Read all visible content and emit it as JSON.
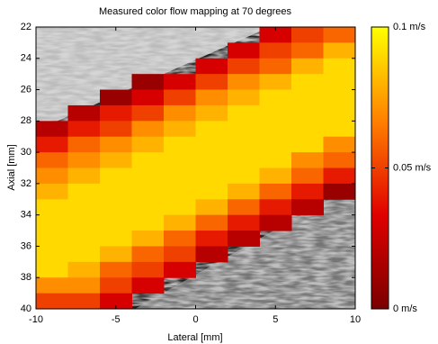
{
  "chart_data": {
    "type": "heatmap",
    "title": "Measured color flow mapping at 70 degrees",
    "xlabel": "Lateral [mm]",
    "ylabel": "Axial [mm]",
    "x": [
      -9,
      -7,
      -5,
      -3,
      -1,
      1,
      3,
      5,
      7,
      9
    ],
    "y": [
      22.5,
      23.5,
      24.5,
      25.5,
      26.5,
      27.5,
      28.5,
      29.5,
      30.5,
      31.5,
      32.5,
      33.5,
      34.5,
      35.5,
      36.5,
      37.5,
      38.5,
      39.5
    ],
    "values": [
      [
        null,
        null,
        null,
        null,
        null,
        null,
        null,
        0.03,
        0.05,
        0.06
      ],
      [
        null,
        null,
        null,
        null,
        null,
        null,
        0.03,
        0.05,
        0.06,
        0.08
      ],
      [
        null,
        null,
        null,
        null,
        null,
        0.03,
        0.05,
        0.06,
        0.08,
        0.09
      ],
      [
        null,
        null,
        null,
        0.01,
        0.03,
        0.05,
        0.07,
        0.08,
        0.09,
        0.09
      ],
      [
        null,
        null,
        0.01,
        0.03,
        0.05,
        0.07,
        0.08,
        0.09,
        0.09,
        0.09
      ],
      [
        null,
        0.02,
        0.04,
        0.05,
        0.07,
        0.08,
        0.09,
        0.09,
        0.09,
        0.09
      ],
      [
        0.02,
        0.04,
        0.05,
        0.07,
        0.08,
        0.09,
        0.09,
        0.09,
        0.09,
        0.09
      ],
      [
        0.04,
        0.06,
        0.07,
        0.08,
        0.09,
        0.09,
        0.09,
        0.09,
        0.09,
        0.07
      ],
      [
        0.06,
        0.07,
        0.08,
        0.09,
        0.09,
        0.09,
        0.09,
        0.09,
        0.07,
        0.06
      ],
      [
        0.07,
        0.08,
        0.09,
        0.09,
        0.09,
        0.09,
        0.09,
        0.08,
        0.06,
        0.04
      ],
      [
        0.08,
        0.09,
        0.09,
        0.09,
        0.09,
        0.09,
        0.08,
        0.06,
        0.04,
        0.01
      ],
      [
        0.09,
        0.09,
        0.09,
        0.09,
        0.09,
        0.08,
        0.06,
        0.04,
        0.02,
        null
      ],
      [
        0.09,
        0.09,
        0.09,
        0.09,
        0.08,
        0.06,
        0.04,
        0.02,
        null,
        null
      ],
      [
        0.09,
        0.09,
        0.09,
        0.08,
        0.06,
        0.04,
        0.02,
        null,
        null,
        null
      ],
      [
        0.09,
        0.09,
        0.08,
        0.06,
        0.05,
        0.02,
        null,
        null,
        null,
        null
      ],
      [
        0.09,
        0.08,
        0.06,
        0.05,
        0.03,
        null,
        null,
        null,
        null,
        null
      ],
      [
        0.07,
        0.07,
        0.05,
        0.03,
        null,
        null,
        null,
        null,
        null,
        null
      ],
      [
        0.05,
        0.05,
        0.03,
        null,
        null,
        null,
        null,
        null,
        null,
        null
      ]
    ],
    "xlim": [
      -10,
      10
    ],
    "xticks": [
      -10,
      -5,
      0,
      5,
      10
    ],
    "ylim": [
      22,
      40
    ],
    "yreverse": true,
    "yticks": [
      22,
      24,
      26,
      28,
      30,
      32,
      34,
      36,
      38,
      40
    ],
    "colormap": [
      "#7a0000",
      "#e00000",
      "#ff8000",
      "#ffff00"
    ],
    "colorbar": {
      "lim": [
        0,
        0.1
      ],
      "ticks": [
        {
          "value": 0,
          "label": "0 m/s"
        },
        {
          "value": 0.05,
          "label": "0.05 m/s"
        },
        {
          "value": 0.1,
          "label": "0.1 m/s"
        }
      ]
    }
  }
}
